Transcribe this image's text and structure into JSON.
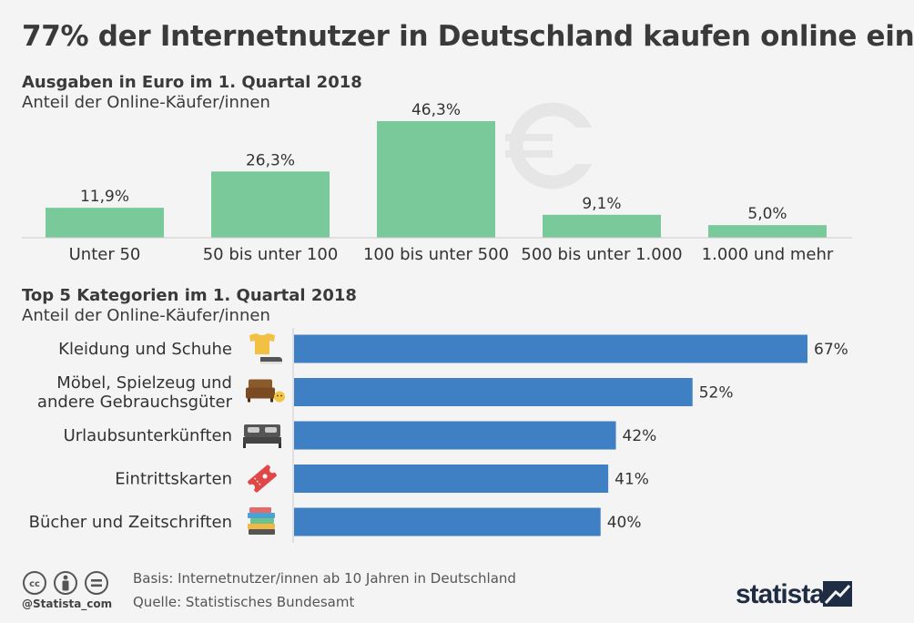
{
  "title": "77% der Internetnutzer in Deutschland kaufen online ein",
  "chart_data": [
    {
      "type": "bar",
      "title": "Ausgaben in Euro im 1. Quartal 2018",
      "subtitle": "Anteil der Online-Käufer/innen",
      "categories": [
        "Unter 50",
        "50 bis unter 100",
        "100 bis unter 500",
        "500 bis unter 1.000",
        "1.000 und mehr"
      ],
      "values": [
        11.9,
        26.3,
        46.3,
        9.1,
        5.0
      ],
      "value_labels": [
        "11,9%",
        "26,3%",
        "46,3%",
        "9,1%",
        "5,0%"
      ],
      "color": "#79c99a",
      "grid": false,
      "ylim": [
        0,
        46.3
      ]
    },
    {
      "type": "bar",
      "orientation": "horizontal",
      "title": "Top 5 Kategorien im 1. Quartal 2018",
      "subtitle": "Anteil der Online-Käufer/innen",
      "categories": [
        [
          "Kleidung und Schuhe"
        ],
        [
          "Möbel, Spielzeug und",
          "andere Gebrauchsgüter"
        ],
        [
          "Urlaubsunterkünften"
        ],
        [
          "Eintrittskarten"
        ],
        [
          "Bücher und Zeitschriften"
        ]
      ],
      "icons": [
        "clothing-icon",
        "furniture-toy-icon",
        "bed-icon",
        "ticket-icon",
        "books-icon"
      ],
      "values": [
        67,
        52,
        42,
        41,
        40
      ],
      "value_labels": [
        "67%",
        "52%",
        "42%",
        "41%",
        "40%"
      ],
      "color": "#3f7fc3",
      "grid": false,
      "xlim": [
        0,
        67
      ]
    }
  ],
  "footer": {
    "handle": "@Statista_com",
    "basis": "Basis: Internetnutzer/innen ab 10 Jahren in Deutschland",
    "source": "Quelle: Statistisches Bundesamt",
    "brand": "statista",
    "license_icons": [
      "cc-icon",
      "by-icon",
      "nd-icon"
    ]
  }
}
